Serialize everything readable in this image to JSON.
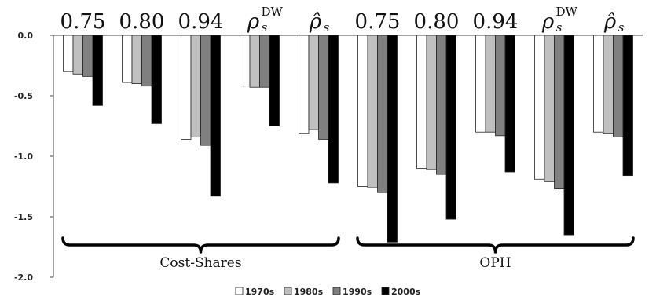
{
  "chart_data": {
    "type": "bar",
    "ylim": [
      -2.0,
      0.0
    ],
    "yticks": [
      "0.0",
      "-0.5",
      "-1.0",
      "-1.5",
      "-2.0"
    ],
    "groups": [
      "Cost-Shares",
      "OPH"
    ],
    "categories": [
      {
        "group": "Cost-Shares",
        "base": "0.75",
        "sup": ""
      },
      {
        "group": "Cost-Shares",
        "base": "0.80",
        "sup": ""
      },
      {
        "group": "Cost-Shares",
        "base": "0.94",
        "sup": ""
      },
      {
        "group": "Cost-Shares",
        "base": "ρ",
        "sup": "DW"
      },
      {
        "group": "Cost-Shares",
        "base": "ρ̂",
        "sup": ""
      },
      {
        "group": "OPH",
        "base": "0.75",
        "sup": ""
      },
      {
        "group": "OPH",
        "base": "0.80",
        "sup": ""
      },
      {
        "group": "OPH",
        "base": "0.94",
        "sup": ""
      },
      {
        "group": "OPH",
        "base": "ρ",
        "sup": "DW"
      },
      {
        "group": "OPH",
        "base": "ρ̂",
        "sup": ""
      }
    ],
    "series": [
      {
        "name": "1970s",
        "color": "#ffffff",
        "values": [
          -0.3,
          -0.39,
          -0.86,
          -0.42,
          -0.81,
          -1.25,
          -1.1,
          -0.8,
          -1.19,
          -0.8
        ]
      },
      {
        "name": "1980s",
        "color": "#c0c0c0",
        "values": [
          -0.32,
          -0.4,
          -0.84,
          -0.43,
          -0.78,
          -1.26,
          -1.11,
          -0.8,
          -1.21,
          -0.81
        ]
      },
      {
        "name": "1990s",
        "color": "#808080",
        "values": [
          -0.34,
          -0.42,
          -0.91,
          -0.43,
          -0.86,
          -1.3,
          -1.15,
          -0.83,
          -1.27,
          -0.84
        ]
      },
      {
        "name": "2000s",
        "color": "#000000",
        "values": [
          -0.58,
          -0.73,
          -1.33,
          -0.75,
          -1.22,
          -1.71,
          -1.52,
          -1.13,
          -1.65,
          -1.16
        ]
      }
    ],
    "legend_position": "bottom",
    "grid": false
  }
}
